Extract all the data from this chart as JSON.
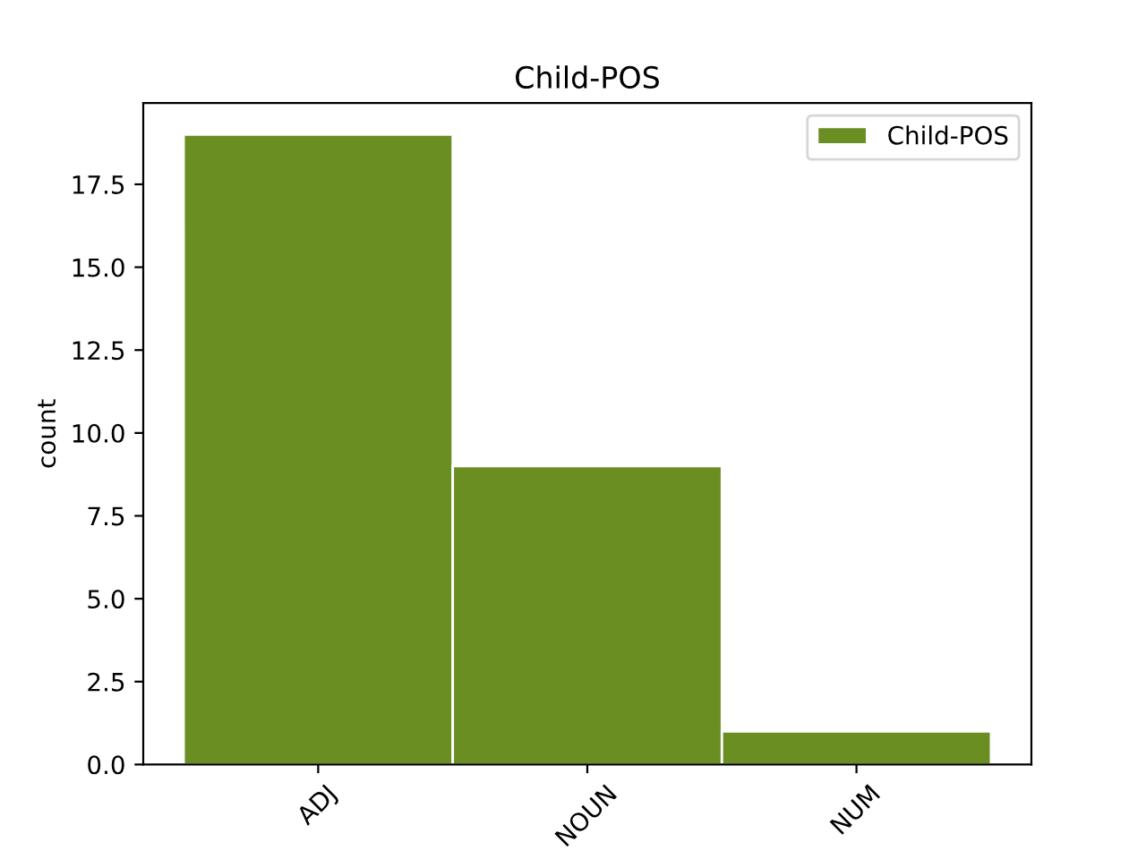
{
  "chart_data": {
    "type": "bar",
    "title": "Child-POS",
    "ylabel": "count",
    "categories": [
      "ADJ",
      "NOUN",
      "NUM"
    ],
    "series": [
      {
        "name": "Child-POS",
        "color": "#6b8e23",
        "values": [
          19,
          9,
          1
        ]
      }
    ],
    "ylim": [
      0,
      19.95
    ],
    "yticks": [
      {
        "value": 0,
        "label": "0.0"
      },
      2.5,
      {
        "value": 5,
        "label": "5.0"
      },
      7.5,
      {
        "value": 10,
        "label": "10.0"
      },
      12.5,
      {
        "value": 15,
        "label": "15.0"
      },
      17.5
    ],
    "legend": "top right",
    "grid": false
  }
}
